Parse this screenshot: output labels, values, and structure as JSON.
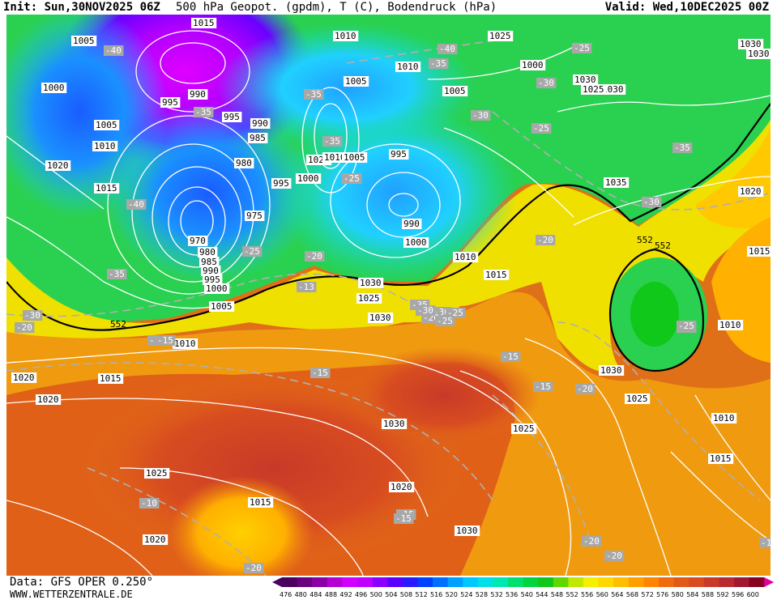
{
  "header": {
    "init": "Init: Sun,30NOV2025 06Z",
    "title": "500 hPa Geopot. (gpdm), T (C), Bodendruck (hPa)",
    "valid": "Valid: Wed,10DEC2025 00Z"
  },
  "footer": {
    "source": "Data: GFS OPER 0.250°",
    "website": "WWW.WETTERZENTRALE.DE"
  },
  "colorbar": {
    "ticks": [
      "476",
      "480",
      "484",
      "488",
      "492",
      "496",
      "500",
      "504",
      "508",
      "512",
      "516",
      "520",
      "524",
      "528",
      "532",
      "536",
      "540",
      "544",
      "548",
      "552",
      "556",
      "560",
      "564",
      "568",
      "572",
      "576",
      "580",
      "584",
      "588",
      "592",
      "596",
      "600"
    ],
    "colors": [
      "#4b0060",
      "#6a007f",
      "#8b00a5",
      "#b400d2",
      "#d200ff",
      "#c000ff",
      "#8a00ff",
      "#5b00ff",
      "#2a1aff",
      "#0040ff",
      "#0070ff",
      "#00a0ff",
      "#00c8ff",
      "#00e0e6",
      "#00e8b0",
      "#00e070",
      "#00d440",
      "#10c81a",
      "#60d800",
      "#c0e800",
      "#f5f000",
      "#ffd800",
      "#ffbe00",
      "#ffa000",
      "#ff8400",
      "#f06a10",
      "#e05a18",
      "#d84c20",
      "#c83a28",
      "#b82a30",
      "#a01830",
      "#880020"
    ]
  },
  "pressure_labels": [
    "995",
    "1005",
    "1010",
    "1000",
    "990",
    "995",
    "995",
    "1005",
    "1010",
    "1020",
    "1015",
    "985",
    "980",
    "990",
    "975",
    "995",
    "1000",
    "1020",
    "1010",
    "1005",
    "1010",
    "1005",
    "995",
    "990",
    "1000",
    "1005",
    "1010",
    "1015",
    "1000",
    "1030",
    "1025",
    "1030",
    "1030",
    "1035",
    "1020",
    "1015",
    "1010",
    "1030",
    "1025",
    "1010",
    "1015",
    "1020",
    "1025",
    "1030",
    "1020",
    "1025",
    "1030",
    "1015",
    "1020",
    "1030",
    "1030",
    "1025",
    "1030",
    "1015",
    "1010",
    "1015",
    "1020",
    "970",
    "980",
    "985",
    "990",
    "995",
    "1000",
    "1005",
    "1025",
    "1015"
  ],
  "temp_labels": [
    "-40",
    "-35",
    "-40",
    "-35",
    "-30",
    "-35",
    "-30",
    "-35",
    "-25",
    "-35",
    "-30",
    "-25",
    "-35",
    "-40",
    "-30",
    "-20",
    "-25",
    "-25",
    "-35",
    "-30",
    "-25",
    "-20",
    "-20",
    "-15",
    "-13",
    "-20",
    "-25",
    "-30",
    "-15",
    "-15",
    "-15",
    "-20",
    "-20",
    "-10",
    "-15",
    "-20",
    "-20",
    "-15",
    "-1",
    "-25",
    "-15",
    "-25"
  ],
  "height_labels": [
    "552",
    "552",
    "552"
  ]
}
